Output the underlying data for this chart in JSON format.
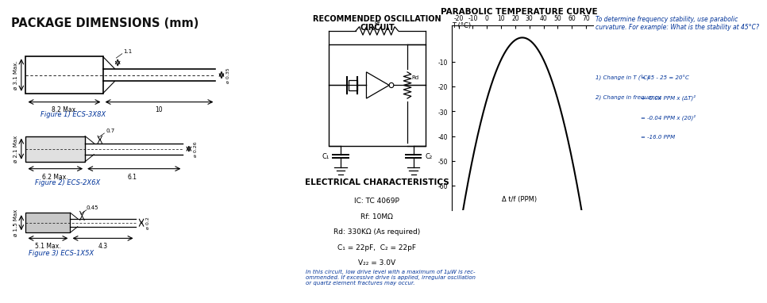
{
  "bg_color": "#ffffff",
  "blue_text": "#003399",
  "pkg_title": "PACKAGE DIMENSIONS (mm)",
  "osc_title": "RECOMMENDED OSCILLATION\nCIRCUIT",
  "temp_title": "PARABOLIC TEMPERATURE CURVE",
  "elec_title": "ELECTRICAL CHARACTERISTICS",
  "fig1_label": "Figure 1) ECS-3X8X",
  "fig2_label": "Figure 2) ECS-2X6X",
  "fig3_label": "Figure 3) ECS-1X5X",
  "note_text": "In this circuit, low drive level with a maximum of 1μW is rec-\nommended. If excessive drive is applied, irregular oscillation\nor quartz element fractures may occur.",
  "para_note1": "To determine frequency stability, use parabolic\ncurvature. For example: What is the stability at 45°C?",
  "temp_xticks": [
    -20,
    -10,
    0,
    10,
    20,
    30,
    40,
    50,
    60,
    70
  ],
  "temp_yticks": [
    -10,
    -20,
    -30,
    -40,
    -50,
    -60
  ],
  "temp_xlabel": "Δ t/f (PPM)"
}
